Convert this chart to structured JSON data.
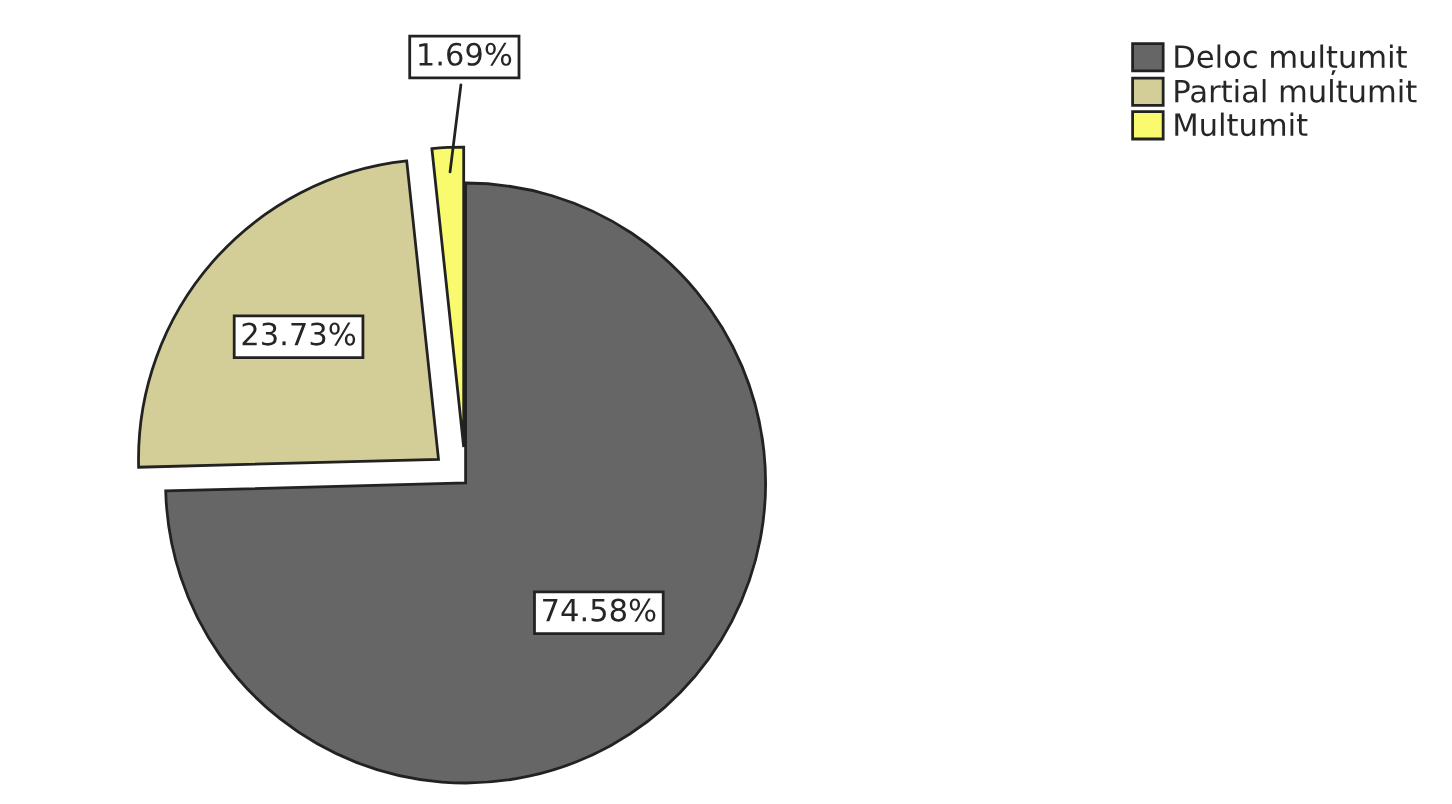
{
  "chart_data": {
    "type": "pie",
    "categories": [
      "Deloc mulțumit",
      "Partial multumit",
      "Multumit"
    ],
    "values": [
      74.58,
      23.73,
      1.69
    ],
    "value_labels": [
      "74.58%",
      "23.73%",
      "1.69%"
    ],
    "colors": [
      "#666666",
      "#d3ce98",
      "#fafa6e"
    ],
    "legend": "top right"
  }
}
